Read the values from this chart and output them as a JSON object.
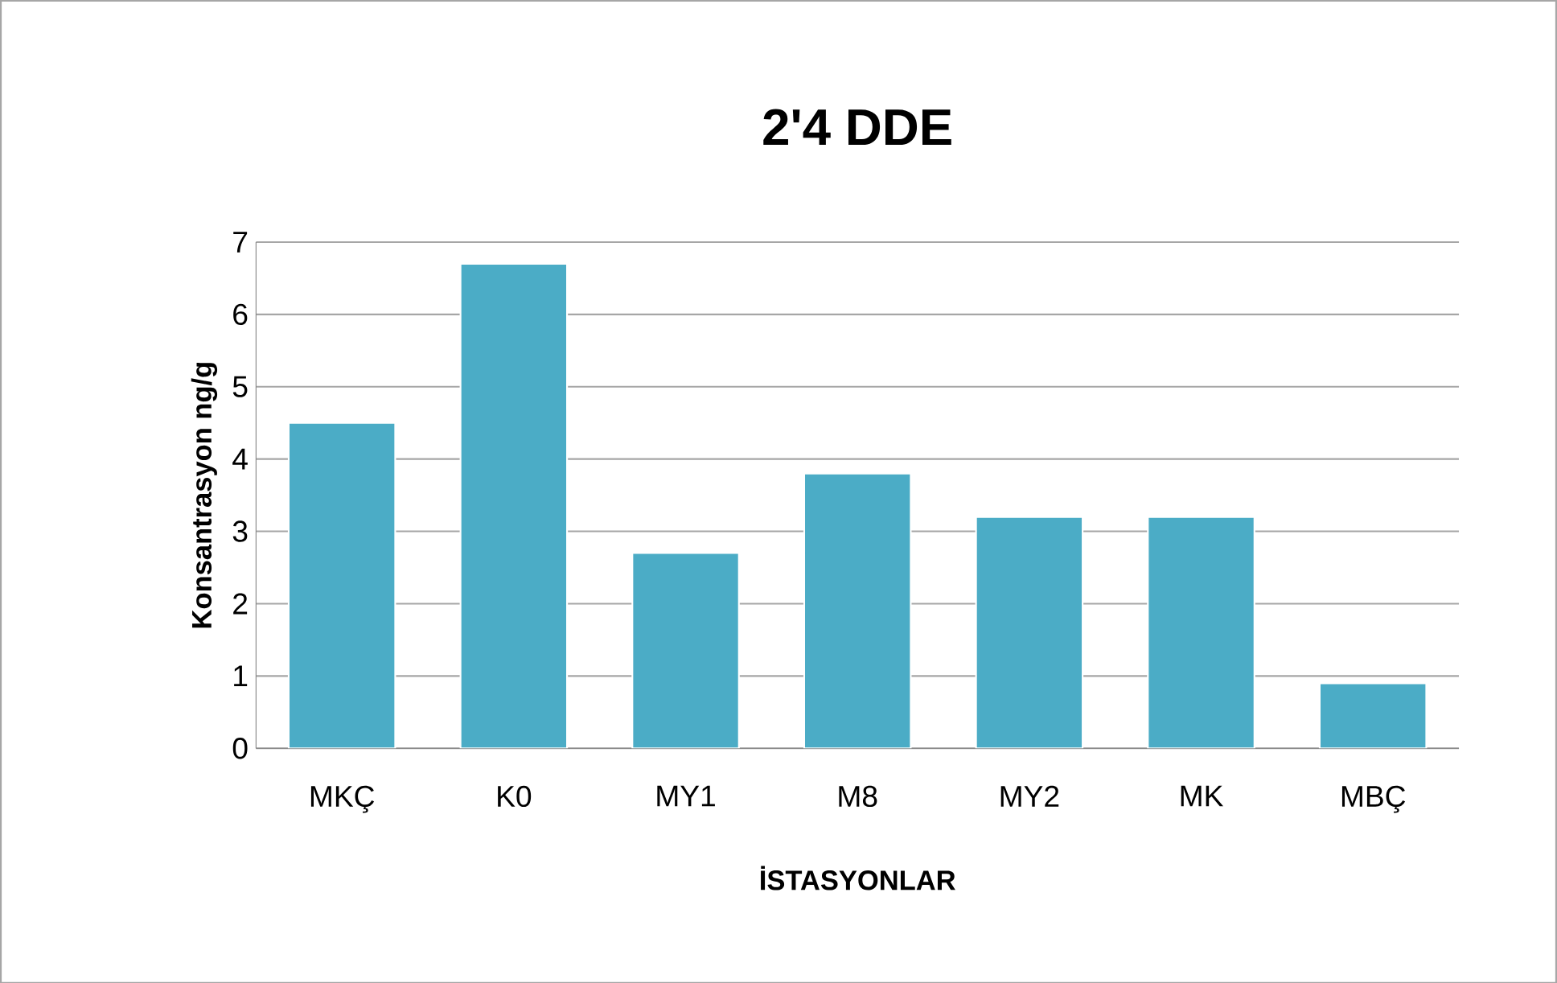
{
  "chart_data": {
    "type": "bar",
    "title": "2'4 DDE",
    "xlabel": "İSTASYONLAR",
    "ylabel": "Konsantrasyon ng/g",
    "categories": [
      "MKÇ",
      "K0",
      "MY1",
      "M8",
      "MY2",
      "MK",
      "MBÇ"
    ],
    "values": [
      4.5,
      6.7,
      2.7,
      3.8,
      3.2,
      3.2,
      0.9
    ],
    "color": "#4bacc6",
    "ylim": [
      0,
      7
    ],
    "yticks": [
      0,
      1,
      2,
      3,
      4,
      5,
      6,
      7
    ],
    "grid": "y"
  }
}
